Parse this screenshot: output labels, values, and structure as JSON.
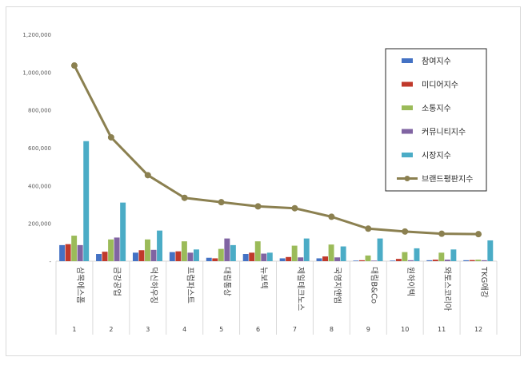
{
  "chart_data": {
    "type": "bar",
    "title": "",
    "xlabel": "",
    "ylabel": "",
    "ylim": [
      0,
      1200000
    ],
    "y_ticks": [
      "-",
      "200,000",
      "400,000",
      "600,000",
      "800,000",
      "1,000,000",
      "1,200,000"
    ],
    "y_tick_values": [
      0,
      200000,
      400000,
      600000,
      800000,
      1000000,
      1200000
    ],
    "categories": [
      "삼목에스폼",
      "금강공업",
      "덕신하우징",
      "프럼파스트",
      "대림통상",
      "뉴보텍",
      "제일테크노스",
      "국영지앤엠",
      "대림B&Co",
      "원하이텍",
      "와토스코리아",
      "TKG애강"
    ],
    "ranks": [
      "1",
      "2",
      "3",
      "4",
      "5",
      "6",
      "7",
      "8",
      "9",
      "10",
      "11",
      "12"
    ],
    "series": [
      {
        "name": "참여지수",
        "color": "#4472c4",
        "type": "bar",
        "values": [
          85000,
          38000,
          45000,
          48000,
          18000,
          38000,
          15000,
          15000,
          3000,
          3000,
          5000,
          5000
        ]
      },
      {
        "name": "미디어지수",
        "color": "#c0392b",
        "type": "bar",
        "values": [
          90000,
          50000,
          58000,
          52000,
          15000,
          45000,
          22000,
          25000,
          5000,
          12000,
          8000,
          6000
        ]
      },
      {
        "name": "소통지수",
        "color": "#9bbb59",
        "type": "bar",
        "values": [
          135000,
          115000,
          115000,
          105000,
          65000,
          105000,
          82000,
          88000,
          30000,
          48000,
          45000,
          8000
        ]
      },
      {
        "name": "커뮤니티지수",
        "color": "#8064a2",
        "type": "bar",
        "values": [
          85000,
          125000,
          60000,
          45000,
          120000,
          40000,
          20000,
          20000,
          3000,
          5000,
          8000,
          5000
        ]
      },
      {
        "name": "시장지수",
        "color": "#4bacc6",
        "type": "bar",
        "values": [
          635000,
          310000,
          162000,
          62000,
          85000,
          45000,
          120000,
          78000,
          120000,
          68000,
          62000,
          110000
        ]
      },
      {
        "name": "브랜드평판지수",
        "color": "#8b8050",
        "type": "line",
        "values": [
          1035000,
          655000,
          455000,
          335000,
          312000,
          290000,
          280000,
          235000,
          172000,
          157000,
          145000,
          143000
        ]
      }
    ],
    "legend_position": "top-right",
    "grid": false
  }
}
